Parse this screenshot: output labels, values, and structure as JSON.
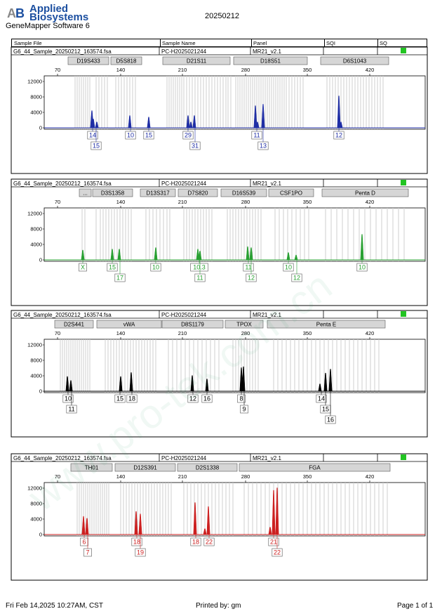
{
  "header": {
    "brand_line1": "Applied",
    "brand_line2": "Biosystems",
    "software": "GeneMapper Software 6",
    "run_date": "20250212"
  },
  "columns": {
    "sample_file": "Sample File",
    "sample_name": "Sample Name",
    "panel": "Panel",
    "sqi": "SQI",
    "sq": "SQ"
  },
  "axis_ticks": [
    "70",
    "140",
    "210",
    "280",
    "350",
    "420"
  ],
  "y_ticks": [
    "12000",
    "8000",
    "4000",
    "0"
  ],
  "colors": {
    "blue": "#1f2ea5",
    "green": "#28a032",
    "black": "#000000",
    "red": "#cc2020",
    "status": "#22c422"
  },
  "panels": [
    {
      "sample_file": "G6_44_Sample_20250212_163574.fsa",
      "sample_name": "PC-H2025021244",
      "panel": "MR21_v2.1",
      "color": "#1f2ea5",
      "markers": [
        {
          "label": "D19S433",
          "start": 97,
          "end": 155
        },
        {
          "label": "D5S818",
          "start": 158,
          "end": 202
        },
        {
          "label": "D21S11",
          "start": 232,
          "end": 328
        },
        {
          "label": "D18S51",
          "start": 333,
          "end": 438
        },
        {
          "label": "D6S1043",
          "start": 457,
          "end": 554
        }
      ],
      "peaks": [
        131,
        133,
        138,
        185,
        212,
        268,
        272,
        277,
        364,
        367,
        375,
        483,
        486
      ],
      "heights": [
        0.35,
        0.18,
        0.12,
        0.25,
        0.22,
        0.25,
        0.12,
        0.25,
        0.45,
        0.12,
        0.48,
        0.65,
        0.12
      ],
      "alleles_row1": [
        {
          "label": "14",
          "x": 132
        },
        {
          "label": "10",
          "x": 186
        },
        {
          "label": "15",
          "x": 212
        },
        {
          "label": "29",
          "x": 268
        },
        {
          "label": "11",
          "x": 366
        },
        {
          "label": "12",
          "x": 483
        }
      ],
      "alleles_row2": [
        {
          "label": "15",
          "x": 137
        },
        {
          "label": "31",
          "x": 278
        },
        {
          "label": "13",
          "x": 375
        }
      ]
    },
    {
      "sample_file": "G6_44_Sample_20250212_163574.fsa",
      "sample_name": "PC-H2025021244",
      "panel": "MR21_v2.1",
      "color": "#28a032",
      "markers": [
        {
          "label": "...",
          "start": 113,
          "end": 130
        },
        {
          "label": "D3S1358",
          "start": 132,
          "end": 189
        },
        {
          "label": "D13S317",
          "start": 200,
          "end": 250
        },
        {
          "label": "D7S820",
          "start": 254,
          "end": 310
        },
        {
          "label": "D16S539",
          "start": 315,
          "end": 380
        },
        {
          "label": "CSF1PO",
          "start": 383,
          "end": 447
        },
        {
          "label": "Penta D",
          "start": 459,
          "end": 582
        }
      ],
      "peaks": [
        118,
        160,
        170,
        222,
        282,
        285,
        353,
        358,
        411,
        422,
        516
      ],
      "heights": [
        0.2,
        0.22,
        0.22,
        0.25,
        0.22,
        0.18,
        0.27,
        0.25,
        0.15,
        0.1,
        0.52
      ],
      "alleles_row1": [
        {
          "label": "X",
          "x": 118
        },
        {
          "label": "15",
          "x": 160
        },
        {
          "label": "10",
          "x": 222
        },
        {
          "label": "10.3",
          "x": 284
        },
        {
          "label": "11",
          "x": 354
        },
        {
          "label": "10",
          "x": 411
        },
        {
          "label": "10",
          "x": 516
        }
      ],
      "alleles_row2": [
        {
          "label": "17",
          "x": 171
        },
        {
          "label": "11",
          "x": 285
        },
        {
          "label": "12",
          "x": 358
        },
        {
          "label": "12",
          "x": 423
        }
      ]
    },
    {
      "sample_file": "G6_44_Sample_20250212_163574.fsa",
      "sample_name": "PC-H2025021244",
      "panel": "MR21_v2.1",
      "color": "#000000",
      "markers": [
        {
          "label": "D2S441",
          "start": 78,
          "end": 133
        },
        {
          "label": "vWA",
          "start": 138,
          "end": 230
        },
        {
          "label": "D8S1179",
          "start": 231,
          "end": 318
        },
        {
          "label": "TPOX",
          "start": 321,
          "end": 375
        },
        {
          "label": "Penta E",
          "start": 381,
          "end": 549
        }
      ],
      "peaks": [
        96,
        101,
        172,
        187,
        274,
        295,
        344,
        347,
        456,
        464,
        471
      ],
      "heights": [
        0.3,
        0.22,
        0.3,
        0.38,
        0.32,
        0.25,
        0.48,
        0.5,
        0.15,
        0.37,
        0.45
      ],
      "alleles_row1": [
        {
          "label": "10",
          "x": 97
        },
        {
          "label": "15",
          "x": 171
        },
        {
          "label": "18",
          "x": 188
        },
        {
          "label": "12",
          "x": 275
        },
        {
          "label": "16",
          "x": 295
        },
        {
          "label": "8",
          "x": 344
        },
        {
          "label": "14",
          "x": 458
        }
      ],
      "alleles_row2": [
        {
          "label": "11",
          "x": 102
        },
        {
          "label": "9",
          "x": 348
        },
        {
          "label": "15",
          "x": 464
        }
      ],
      "alleles_row3": [
        {
          "label": "16",
          "x": 471
        }
      ]
    },
    {
      "sample_file": "G6_44_Sample_20250212_163574.fsa",
      "sample_name": "PC-H2025021244",
      "panel": "MR21_v2.1",
      "color": "#cc2020",
      "markers": [
        {
          "label": "TH01",
          "start": 101,
          "end": 160
        },
        {
          "label": "D12S391",
          "start": 164,
          "end": 250
        },
        {
          "label": "D2S1338",
          "start": 253,
          "end": 338
        },
        {
          "label": "FGA",
          "start": 341,
          "end": 556
        }
      ],
      "peaks": [
        119,
        124,
        194,
        200,
        278,
        292,
        297,
        385,
        390,
        395
      ],
      "heights": [
        0.37,
        0.33,
        0.47,
        0.42,
        0.65,
        0.12,
        0.57,
        0.15,
        0.9,
        0.95
      ],
      "alleles_row1": [
        {
          "label": "6",
          "x": 120
        },
        {
          "label": "18",
          "x": 195
        },
        {
          "label": "18",
          "x": 279
        },
        {
          "label": "22",
          "x": 298
        },
        {
          "label": "21",
          "x": 390
        }
      ],
      "alleles_row2": [
        {
          "label": "7",
          "x": 125
        },
        {
          "label": "19",
          "x": 200
        },
        {
          "label": "22",
          "x": 395
        }
      ]
    }
  ],
  "footer": {
    "printed_at": "Fri Feb 14,2025 10:27AM, CST",
    "printed_by": "Printed by: gm",
    "page": "Page 1 of 1"
  }
}
